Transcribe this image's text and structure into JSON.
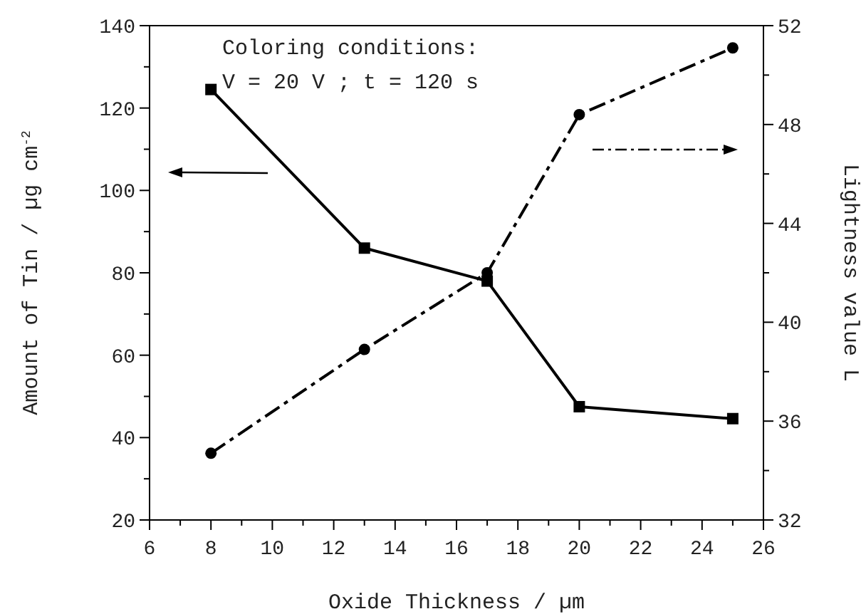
{
  "chart_data": {
    "type": "line",
    "xlabel": "Oxide Thickness / µm",
    "ylabel": "Amount of Tin /  µg cm$^{-2}$",
    "y2label": "Lightness value L",
    "x": [
      8,
      13,
      17,
      20,
      25
    ],
    "series": [
      {
        "color": "#000000",
        "values": [
          124.5,
          86,
          78,
          47.5,
          44.6
        ],
        "marker": "square",
        "line_style": "solid"
      },
      {
        "color": "#000000",
        "values": [
          34.7,
          38.9,
          42.0,
          48.4,
          51.1
        ],
        "marker": "circle",
        "line_style": "dashdot",
        "axis": "y2"
      }
    ],
    "xlim": [
      6,
      26
    ],
    "xticks": [
      6,
      {
        "value": 7,
        "label": null
      },
      8,
      {
        "value": 9,
        "label": null
      },
      10,
      {
        "value": 11,
        "label": null
      },
      12,
      {
        "value": 13,
        "label": null
      },
      14,
      {
        "value": 15,
        "label": null
      },
      16,
      {
        "value": 17,
        "label": null
      },
      18,
      {
        "value": 19,
        "label": null
      },
      20,
      {
        "value": 21,
        "label": null
      },
      22,
      {
        "value": 23,
        "label": null
      },
      24,
      {
        "value": 25,
        "label": null
      },
      26
    ],
    "ylim": [
      20,
      140
    ],
    "yticks": [
      20,
      {
        "value": 30,
        "label": null
      },
      40,
      {
        "value": 50,
        "label": null
      },
      60,
      {
        "value": 70,
        "label": null
      },
      80,
      {
        "value": 90,
        "label": null
      },
      100,
      {
        "value": 110,
        "label": null
      },
      120,
      {
        "value": 130,
        "label": null
      },
      140
    ],
    "y2lim": [
      32,
      52
    ],
    "y2ticks": [
      32,
      {
        "value": 34,
        "label": null
      },
      36,
      {
        "value": 38,
        "label": null
      },
      40,
      {
        "value": 42,
        "label": null
      },
      44,
      {
        "value": 46,
        "label": null
      },
      48,
      {
        "value": 50,
        "label": null
      },
      52
    ],
    "annotations": [
      "Coloring conditions:",
      "V = 20 V ; t = 120 s"
    ],
    "grid": false,
    "legend": false
  }
}
